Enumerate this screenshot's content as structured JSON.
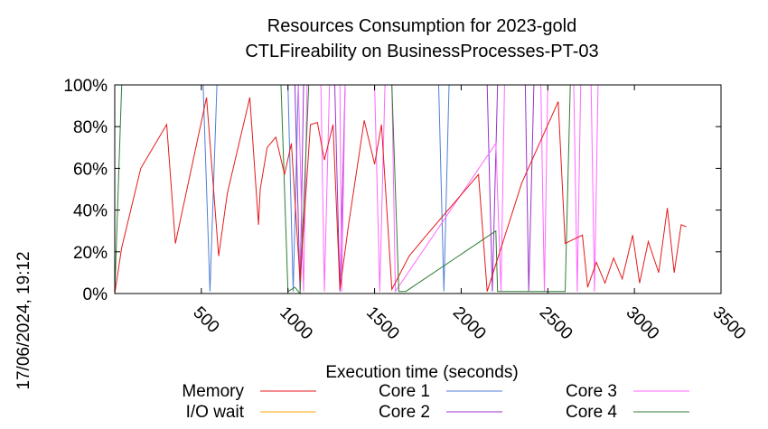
{
  "chart_data": {
    "type": "line",
    "title_line1": "Resources Consumption for 2023-gold",
    "title_line2": "CTLFireability on BusinessProcesses-PT-03",
    "xlabel": "Execution time (seconds)",
    "ylabel": "",
    "timestamp": "17/06/2024, 19:12",
    "xlim": [
      0,
      3500
    ],
    "ylim": [
      0,
      100
    ],
    "x_ticks": [
      500,
      1000,
      1500,
      2000,
      2500,
      3000,
      3500
    ],
    "x_tick_labels": [
      "500",
      "1000",
      "1500",
      "2000",
      "2500",
      "3000",
      "3500"
    ],
    "y_ticks": [
      0,
      20,
      40,
      60,
      80,
      100
    ],
    "y_tick_labels": [
      "0%",
      "20%",
      "40%",
      "60%",
      "80%",
      "100%"
    ],
    "grid": false,
    "legend_placement": "bottom",
    "series": [
      {
        "name": "Memory",
        "color": "#e41a1c",
        "points": [
          [
            0,
            0
          ],
          [
            40,
            22
          ],
          [
            150,
            60
          ],
          [
            300,
            81
          ],
          [
            350,
            24
          ],
          [
            530,
            94
          ],
          [
            600,
            18
          ],
          [
            650,
            48
          ],
          [
            780,
            94
          ],
          [
            830,
            33
          ],
          [
            840,
            50
          ],
          [
            880,
            70
          ],
          [
            930,
            75
          ],
          [
            980,
            57
          ],
          [
            1020,
            72
          ],
          [
            1070,
            6
          ],
          [
            1130,
            81
          ],
          [
            1170,
            82
          ],
          [
            1210,
            64
          ],
          [
            1260,
            81
          ],
          [
            1300,
            2
          ],
          [
            1350,
            33
          ],
          [
            1440,
            83
          ],
          [
            1500,
            62
          ],
          [
            1540,
            81
          ],
          [
            1600,
            2
          ],
          [
            1700,
            18
          ],
          [
            1800,
            28
          ],
          [
            2100,
            57
          ],
          [
            2150,
            1
          ],
          [
            2350,
            53
          ],
          [
            2560,
            92
          ],
          [
            2600,
            24
          ],
          [
            2700,
            28
          ],
          [
            2730,
            3
          ],
          [
            2780,
            15
          ],
          [
            2830,
            5
          ],
          [
            2880,
            17
          ],
          [
            2930,
            7
          ],
          [
            2990,
            28
          ],
          [
            3030,
            5
          ],
          [
            3080,
            25
          ],
          [
            3140,
            10
          ],
          [
            3190,
            41
          ],
          [
            3230,
            10
          ],
          [
            3270,
            33
          ],
          [
            3300,
            32
          ]
        ]
      },
      {
        "name": "I/O wait",
        "color": "#ffa500",
        "points": [
          [
            0,
            0
          ],
          [
            3300,
            0
          ]
        ]
      },
      {
        "name": "Core 1",
        "color": "#4f7fd6",
        "points": [
          [
            40,
            100
          ],
          [
            510,
            100
          ],
          [
            550,
            1
          ],
          [
            590,
            100
          ],
          [
            1000,
            100
          ],
          [
            1030,
            1
          ],
          [
            1060,
            100
          ],
          [
            1870,
            100
          ],
          [
            1900,
            1
          ],
          [
            1930,
            100
          ],
          [
            3300,
            100
          ]
        ]
      },
      {
        "name": "Core 2",
        "color": "#9932cc",
        "points": [
          [
            1040,
            100
          ],
          [
            1070,
            1
          ],
          [
            1090,
            100
          ],
          [
            1270,
            100
          ],
          [
            1300,
            1
          ],
          [
            1330,
            100
          ],
          [
            2150,
            100
          ],
          [
            2180,
            1
          ],
          [
            2210,
            100
          ],
          [
            2370,
            100
          ],
          [
            2390,
            1
          ],
          [
            2420,
            100
          ],
          [
            3300,
            100
          ]
        ]
      },
      {
        "name": "Core 3",
        "color": "#ff66ff",
        "points": [
          [
            1060,
            100
          ],
          [
            1090,
            1
          ],
          [
            1110,
            100
          ],
          [
            1190,
            100
          ],
          [
            1210,
            1
          ],
          [
            1240,
            100
          ],
          [
            1300,
            100
          ],
          [
            1310,
            1
          ],
          [
            1330,
            100
          ],
          [
            1500,
            100
          ],
          [
            1530,
            1
          ],
          [
            1560,
            100
          ],
          [
            1600,
            100
          ],
          [
            1620,
            1
          ],
          [
            2200,
            72
          ],
          [
            2230,
            1
          ],
          [
            2250,
            100
          ],
          [
            2460,
            100
          ],
          [
            2480,
            1
          ],
          [
            2500,
            100
          ],
          [
            2650,
            100
          ],
          [
            2670,
            1
          ],
          [
            2690,
            100
          ],
          [
            2750,
            100
          ],
          [
            2770,
            1
          ],
          [
            2790,
            100
          ],
          [
            3300,
            100
          ]
        ]
      },
      {
        "name": "Core 4",
        "color": "#2e7d32",
        "points": [
          [
            0,
            0
          ],
          [
            40,
            100
          ],
          [
            960,
            100
          ],
          [
            1000,
            1
          ],
          [
            1040,
            3
          ],
          [
            1070,
            0
          ],
          [
            1120,
            100
          ],
          [
            1600,
            100
          ],
          [
            1640,
            1
          ],
          [
            1680,
            1
          ],
          [
            2200,
            30
          ],
          [
            2210,
            1
          ],
          [
            2440,
            1
          ],
          [
            2560,
            1
          ],
          [
            2600,
            1
          ],
          [
            2630,
            100
          ],
          [
            3300,
            100
          ]
        ]
      }
    ]
  }
}
